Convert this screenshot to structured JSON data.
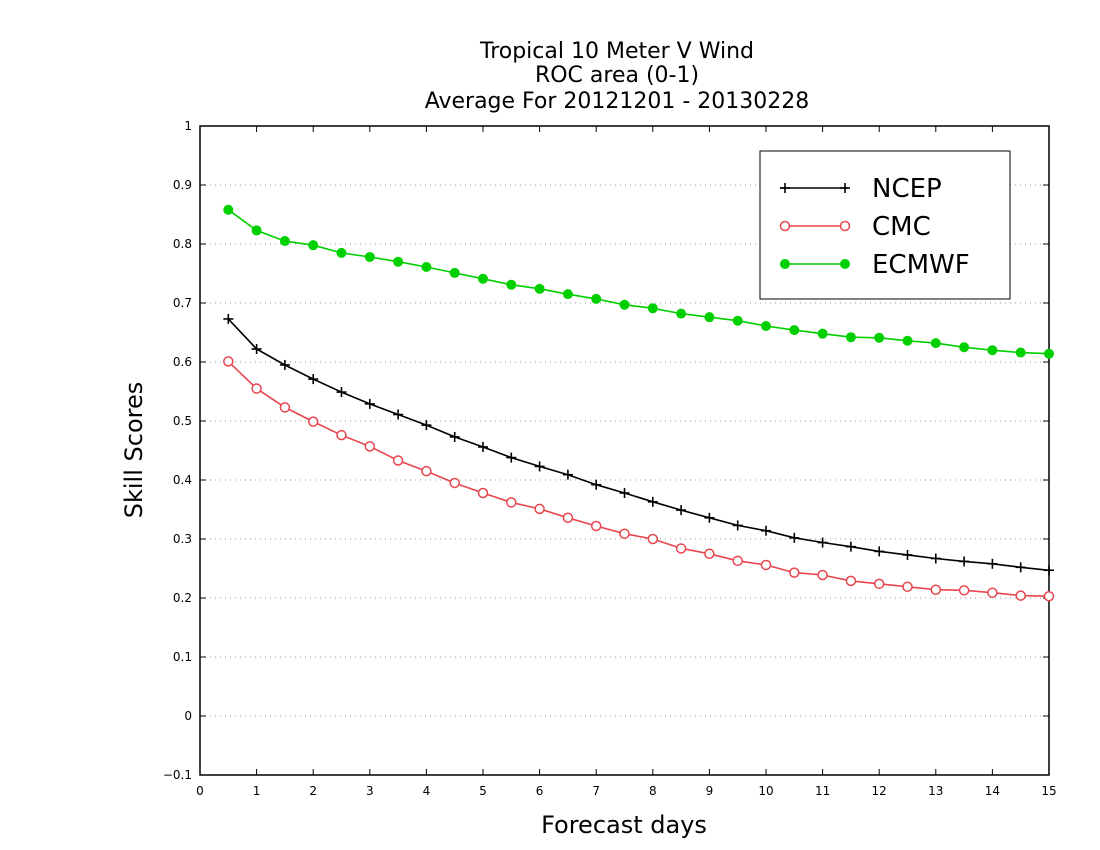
{
  "chart_data": {
    "type": "line",
    "title": [
      "Tropical 10 Meter V Wind",
      "ROC area (0-1)",
      "Average For 20121201 - 20130228"
    ],
    "xlabel": "Forecast days",
    "ylabel": "Skill Scores",
    "xlim": [
      0,
      15
    ],
    "ylim": [
      -0.1,
      1
    ],
    "xticks": [
      "0",
      "1",
      "2",
      "3",
      "4",
      "5",
      "6",
      "7",
      "8",
      "9",
      "10",
      "11",
      "12",
      "13",
      "14",
      "15"
    ],
    "yticks": [
      "−0.1",
      "0",
      "0.1",
      "0.2",
      "0.3",
      "0.4",
      "0.5",
      "0.6",
      "0.7",
      "0.8",
      "0.9",
      "1"
    ],
    "grid": true,
    "legend_position": "top-right",
    "x": [
      0.5,
      1,
      1.5,
      2,
      2.5,
      3,
      3.5,
      4,
      4.5,
      5,
      5.5,
      6,
      6.5,
      7,
      7.5,
      8,
      8.5,
      9,
      9.5,
      10,
      10.5,
      11,
      11.5,
      12,
      12.5,
      13,
      13.5,
      14,
      14.5,
      15
    ],
    "series": [
      {
        "name": "NCEP",
        "color": "#000000",
        "marker": "plus",
        "values": [
          0.673,
          0.622,
          0.595,
          0.571,
          0.549,
          0.529,
          0.511,
          0.493,
          0.473,
          0.456,
          0.438,
          0.423,
          0.409,
          0.392,
          0.378,
          0.363,
          0.349,
          0.336,
          0.323,
          0.314,
          0.302,
          0.294,
          0.287,
          0.279,
          0.273,
          0.267,
          0.262,
          0.258,
          0.252,
          0.247
        ]
      },
      {
        "name": "CMC",
        "color": "#e8454f",
        "marker": "open-circle",
        "values": [
          0.601,
          0.555,
          0.523,
          0.499,
          0.476,
          0.457,
          0.433,
          0.415,
          0.395,
          0.378,
          0.362,
          0.351,
          0.336,
          0.322,
          0.309,
          0.3,
          0.284,
          0.275,
          0.263,
          0.256,
          0.243,
          0.239,
          0.229,
          0.224,
          0.219,
          0.214,
          0.213,
          0.209,
          0.204,
          0.203
        ]
      },
      {
        "name": "ECMWF",
        "color": "#00d000",
        "marker": "filled-circle",
        "values": [
          0.858,
          0.823,
          0.805,
          0.798,
          0.785,
          0.778,
          0.77,
          0.761,
          0.751,
          0.741,
          0.731,
          0.724,
          0.715,
          0.707,
          0.697,
          0.691,
          0.682,
          0.676,
          0.67,
          0.661,
          0.654,
          0.648,
          0.642,
          0.641,
          0.636,
          0.632,
          0.625,
          0.62,
          0.616,
          0.614
        ]
      }
    ]
  }
}
